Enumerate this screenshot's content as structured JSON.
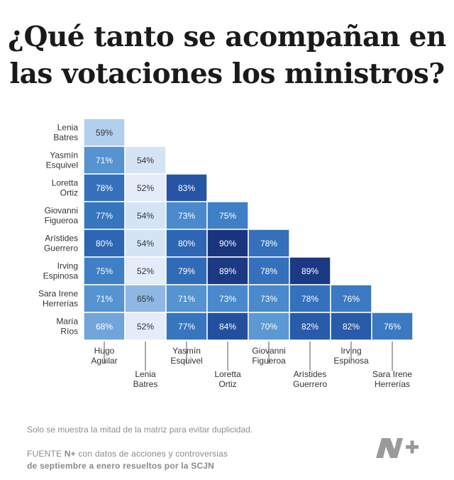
{
  "title_lines": [
    "¿Qué tanto se acompañan en",
    "las votaciones los ministros?"
  ],
  "note": "Solo se muestra la mitad de la matriz para evitar duplicidad.",
  "source": {
    "prefix": "FUENTE ",
    "brand": "N+",
    "line1_rest": " con datos de acciones y controversias",
    "line2": "de septiembre a enero resueltos por la SCJN"
  },
  "logo": {
    "icon": "n-plus-logo",
    "color": "#9a9a9a"
  },
  "colors": {
    "cell_text_dark": "#ffffff",
    "cell_text_light": "#333333",
    "label_text": "#333333"
  },
  "chart_data": {
    "type": "heatmap",
    "title": "¿Qué tanto se acompañan en las votaciones los ministros?",
    "value_suffix": "%",
    "rows": [
      [
        "Lenia",
        "Batres"
      ],
      [
        "Yasmín",
        "Esquivel"
      ],
      [
        "Loretta",
        "Ortiz"
      ],
      [
        "Giovanni",
        "Figueroa"
      ],
      [
        "Arístides",
        "Guerrero"
      ],
      [
        "Irving",
        "Espinosa"
      ],
      [
        "Sara Irene",
        "Herrerías"
      ],
      [
        "María",
        "Ríos"
      ]
    ],
    "columns": [
      [
        "Hugo",
        "Aguilar"
      ],
      [
        "Lenia",
        "Batres"
      ],
      [
        "Yasmín",
        "Esquivel"
      ],
      [
        "Loretta",
        "Ortiz"
      ],
      [
        "Giovanni",
        "Figueroa"
      ],
      [
        "Arístides",
        "Guerrero"
      ],
      [
        "Irving",
        "Espinosa"
      ],
      [
        "Sara Irene",
        "Herrerías"
      ]
    ],
    "values": [
      [
        59
      ],
      [
        71,
        54
      ],
      [
        78,
        52,
        83
      ],
      [
        77,
        54,
        73,
        75
      ],
      [
        80,
        54,
        80,
        90,
        78
      ],
      [
        75,
        52,
        79,
        89,
        78,
        89
      ],
      [
        71,
        65,
        71,
        73,
        73,
        78,
        76
      ],
      [
        68,
        52,
        77,
        84,
        70,
        82,
        82,
        76
      ]
    ],
    "color_scale": {
      "stops": [
        {
          "value": 52,
          "color": "#e3ecf8"
        },
        {
          "value": 59,
          "color": "#b3cfee"
        },
        {
          "value": 65,
          "color": "#8fb7e3"
        },
        {
          "value": 70,
          "color": "#5b98d4"
        },
        {
          "value": 75,
          "color": "#3f7fc6"
        },
        {
          "value": 80,
          "color": "#2c66b4"
        },
        {
          "value": 84,
          "color": "#234f9e"
        },
        {
          "value": 90,
          "color": "#1a357e"
        }
      ]
    }
  }
}
